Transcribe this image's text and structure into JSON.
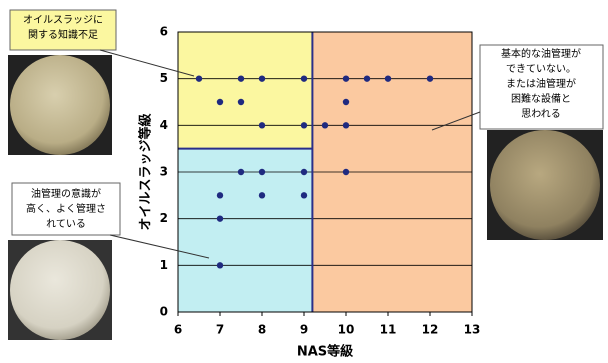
{
  "chart_data": {
    "type": "scatter",
    "x_label": "NAS等級",
    "y_label": "オイルスラッジ等級",
    "x": [
      6.5,
      7.5,
      8,
      9,
      10,
      10.5,
      11,
      12,
      7,
      7.5,
      10,
      8,
      9,
      9.5,
      10,
      7.5,
      8,
      9,
      10,
      7,
      8,
      9,
      7,
      7
    ],
    "values": [
      5,
      5,
      5,
      5,
      5,
      5,
      5,
      5,
      4.5,
      4.5,
      4.5,
      4,
      4,
      4,
      4,
      3,
      3,
      3,
      3,
      2.5,
      2.5,
      2.5,
      2,
      1
    ],
    "color": "#1f2a80",
    "xlim": [
      6,
      13
    ],
    "ylim": [
      0,
      6
    ],
    "xticks": [
      6,
      7,
      8,
      9,
      10,
      11,
      12,
      13
    ],
    "yticks": [
      0,
      1,
      2,
      3,
      4,
      5,
      6
    ],
    "grid": true,
    "regions": [
      {
        "color": "#fbf7a0",
        "xlim": [
          6,
          9.2
        ],
        "ylim": [
          3.5,
          6
        ]
      },
      {
        "color": "#c2eef2",
        "xlim": [
          6,
          9.2
        ],
        "ylim": [
          0,
          3.5
        ]
      },
      {
        "color": "#fbc9a0",
        "xlim": [
          9.2,
          13
        ],
        "ylim": [
          0,
          6
        ]
      }
    ],
    "annotations": [
      {
        "lines": [
          "オイルスラッジに",
          "関する知識不足"
        ]
      },
      {
        "lines": [
          "基本的な油管理が",
          "できていない。",
          "または油管理が",
          "困難な設備と",
          "思われる"
        ]
      },
      {
        "lines": [
          "油管理の意識が",
          "高く、よく管理さ",
          "れている"
        ]
      }
    ]
  }
}
